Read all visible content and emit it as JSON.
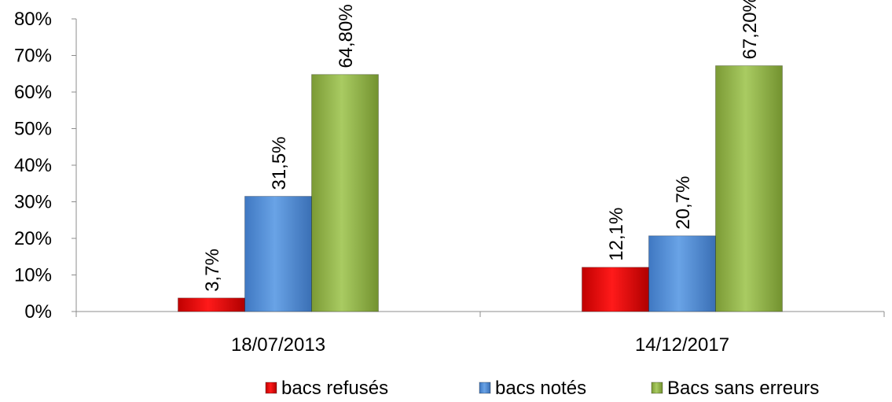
{
  "chart_data": {
    "type": "bar",
    "categories": [
      "18/07/2013",
      "14/12/2017"
    ],
    "series": [
      {
        "name": "bacs refusés",
        "values": [
          3.7,
          12.1
        ],
        "labels": [
          "3,7%",
          "12,1%"
        ],
        "color": "#e8191a"
      },
      {
        "name": "bacs notés",
        "values": [
          31.5,
          20.7
        ],
        "labels": [
          "31,5%",
          "20,7%"
        ],
        "color": "#5b9bd5"
      },
      {
        "name": "Bacs sans erreurs",
        "values": [
          64.8,
          67.2
        ],
        "labels": [
          "64,80%",
          "67,20%"
        ],
        "color": "#9bbb59"
      }
    ],
    "ylim": [
      0,
      80
    ],
    "yticks": [
      "0%",
      "10%",
      "20%",
      "30%",
      "40%",
      "50%",
      "60%",
      "70%",
      "80%"
    ],
    "legend_position": "bottom-right",
    "grid": false
  }
}
